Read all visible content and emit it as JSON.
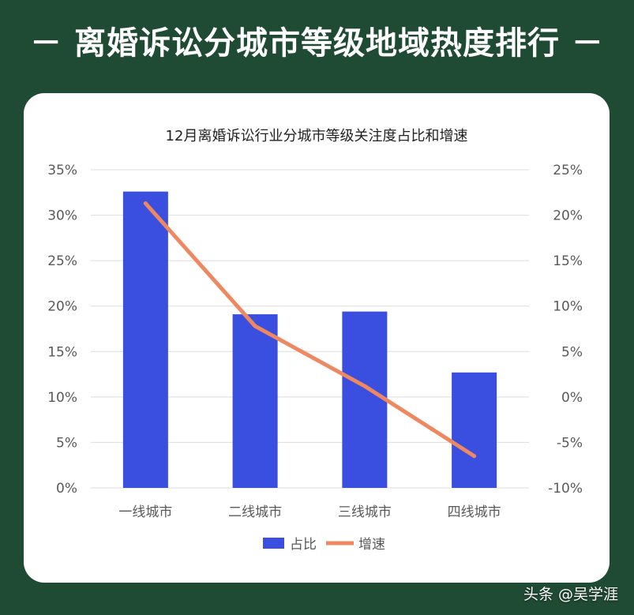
{
  "header": {
    "title": "－ 离婚诉讼分城市等级地域热度排行 －"
  },
  "watermark": "头条 @吴学涯",
  "colors": {
    "background": "#1f4a33",
    "bar": "#3a4fe0",
    "line": "#ee8860",
    "grid": "#dedede",
    "axis_text": "#595959"
  },
  "chart_data": {
    "type": "bar",
    "title": "12月离婚诉讼行业分城市等级关注度占比和增速",
    "categories": [
      "一线城市",
      "二线城市",
      "三线城市",
      "四线城市"
    ],
    "series": [
      {
        "name": "占比",
        "type": "bar",
        "axis": "left",
        "values": [
          32.6,
          19.1,
          19.4,
          12.7
        ]
      },
      {
        "name": "增速",
        "type": "line",
        "axis": "right",
        "values": [
          21.3,
          7.8,
          1.2,
          -6.5
        ]
      }
    ],
    "y_left": {
      "min": 0,
      "max": 35,
      "step": 5,
      "ticks": [
        "0%",
        "5%",
        "10%",
        "15%",
        "20%",
        "25%",
        "30%",
        "35%"
      ]
    },
    "y_right": {
      "min": -10,
      "max": 25,
      "step": 5,
      "ticks": [
        "-10%",
        "-5%",
        "0%",
        "5%",
        "10%",
        "15%",
        "20%",
        "25%"
      ]
    },
    "grid": true,
    "legend_position": "bottom"
  }
}
